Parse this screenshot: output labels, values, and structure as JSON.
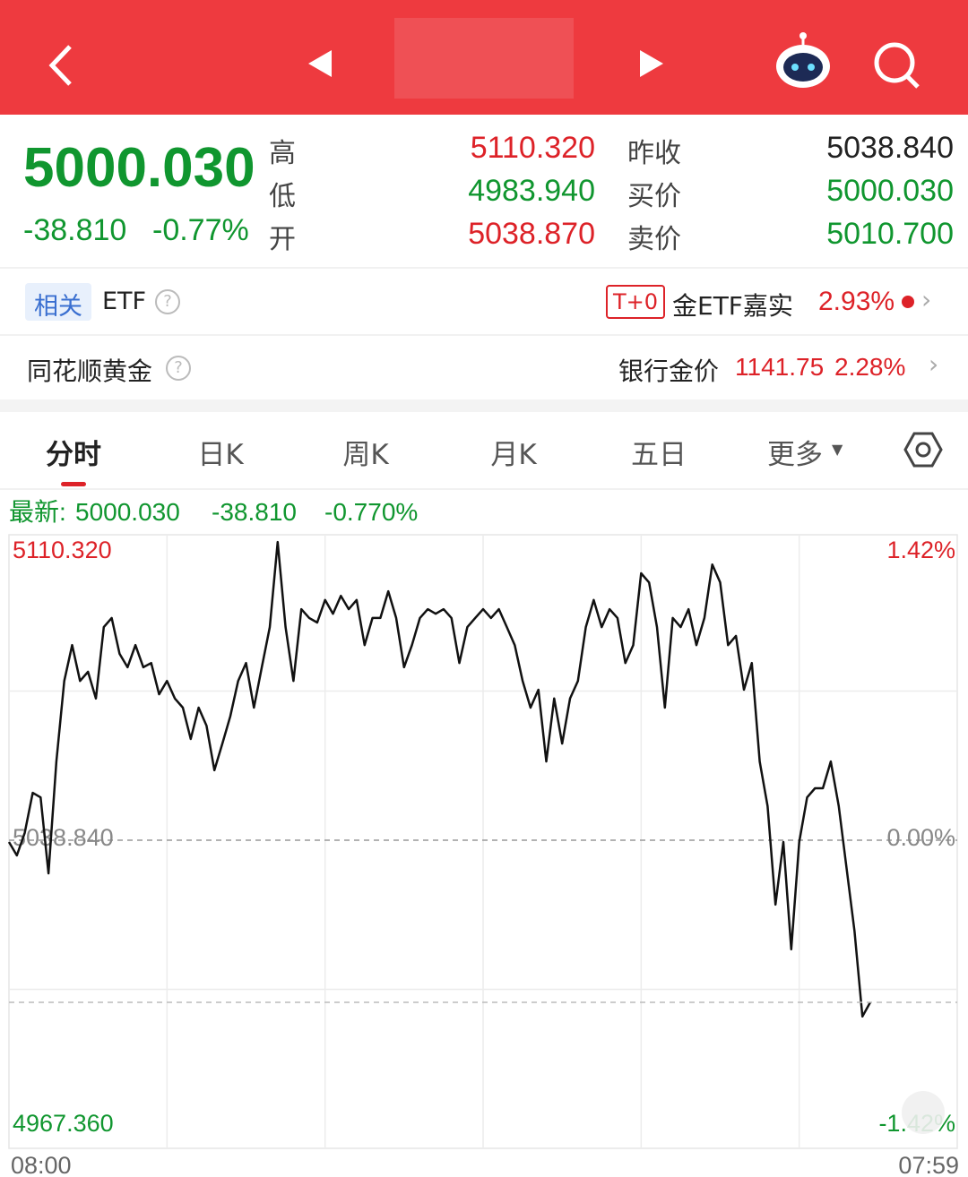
{
  "quote": {
    "price": "5000.030",
    "change": "-38.810",
    "change_pct": "-0.77%",
    "stats_left": [
      {
        "label": "高",
        "value": "5110.320"
      },
      {
        "label": "低",
        "value": "4983.940"
      },
      {
        "label": "开",
        "value": "5038.870"
      }
    ],
    "stats_right": [
      {
        "label": "昨收",
        "value": "5038.840"
      },
      {
        "label": "买价",
        "value": "5000.030"
      },
      {
        "label": "卖价",
        "value": "5010.700"
      }
    ]
  },
  "etf_row": {
    "tag": "相关",
    "title": "ETF",
    "badge": "T+0",
    "name": "金ETF嘉实",
    "pct": "2.93%"
  },
  "gold_row": {
    "title": "同花顺黄金",
    "label": "银行金价",
    "price": "1141.75",
    "pct": "2.28%"
  },
  "tabs": [
    "分时",
    "日K",
    "周K",
    "月K",
    "五日",
    "更多"
  ],
  "chart_data": {
    "type": "line",
    "latest": {
      "label": "最新:",
      "price": "5000.030",
      "change": "-38.810",
      "pct": "-0.770%"
    },
    "color": "#111111",
    "values": [
      5038.4,
      5035.2,
      5040.6,
      5050.2,
      5049.1,
      5030.9,
      5057.7,
      5077.0,
      5085.6,
      5077.0,
      5079.2,
      5072.8,
      5089.9,
      5092.1,
      5083.5,
      5080.3,
      5085.6,
      5080.3,
      5081.3,
      5073.8,
      5077.0,
      5072.8,
      5070.6,
      5063.1,
      5070.6,
      5066.3,
      5055.6,
      5062.0,
      5068.5,
      5077.0,
      5081.3,
      5070.6,
      5080.3,
      5089.9,
      5110.3,
      5089.9,
      5077.0,
      5094.2,
      5092.1,
      5091.0,
      5096.4,
      5093.1,
      5097.4,
      5094.2,
      5096.4,
      5085.6,
      5092.1,
      5092.1,
      5098.5,
      5092.1,
      5080.3,
      5085.6,
      5092.1,
      5094.2,
      5093.1,
      5094.2,
      5092.1,
      5081.3,
      5089.9,
      5092.1,
      5094.2,
      5092.1,
      5094.2,
      5089.9,
      5085.6,
      5077.0,
      5070.6,
      5074.9,
      5057.7,
      5072.8,
      5062.0,
      5072.8,
      5077.0,
      5089.9,
      5096.4,
      5089.9,
      5094.2,
      5092.1,
      5081.3,
      5085.6,
      5102.8,
      5100.6,
      5089.9,
      5070.6,
      5092.1,
      5089.9,
      5094.2,
      5085.6,
      5092.1,
      5104.9,
      5100.6,
      5085.6,
      5087.8,
      5074.9,
      5081.3,
      5057.7,
      5047.0,
      5023.4,
      5038.4,
      5012.7,
      5038.4,
      5049.1,
      5051.3,
      5051.3,
      5057.7,
      5047.0,
      5032.0,
      5017.0,
      4996.6,
      5000.0
    ],
    "xlim": [
      0,
      120
    ],
    "xticks": [
      {
        "value": 0,
        "label": "08:00"
      },
      {
        "value": 120,
        "label": "07:59"
      }
    ],
    "ylim": [
      4967.36,
      5110.32
    ],
    "yticks": [
      {
        "value": 4967.36,
        "label": "4967.360"
      },
      {
        "value": 5038.84,
        "label": "5038.840"
      },
      {
        "value": 5110.32,
        "label": "5110.320"
      }
    ],
    "y2lim": [
      -1.42,
      1.42
    ],
    "y2ticks": [
      {
        "value": -1.42,
        "label": "-1.42%"
      },
      {
        "value": 0,
        "label": "0.00%"
      },
      {
        "value": 1.42,
        "label": "1.42%"
      }
    ],
    "grid": true
  }
}
